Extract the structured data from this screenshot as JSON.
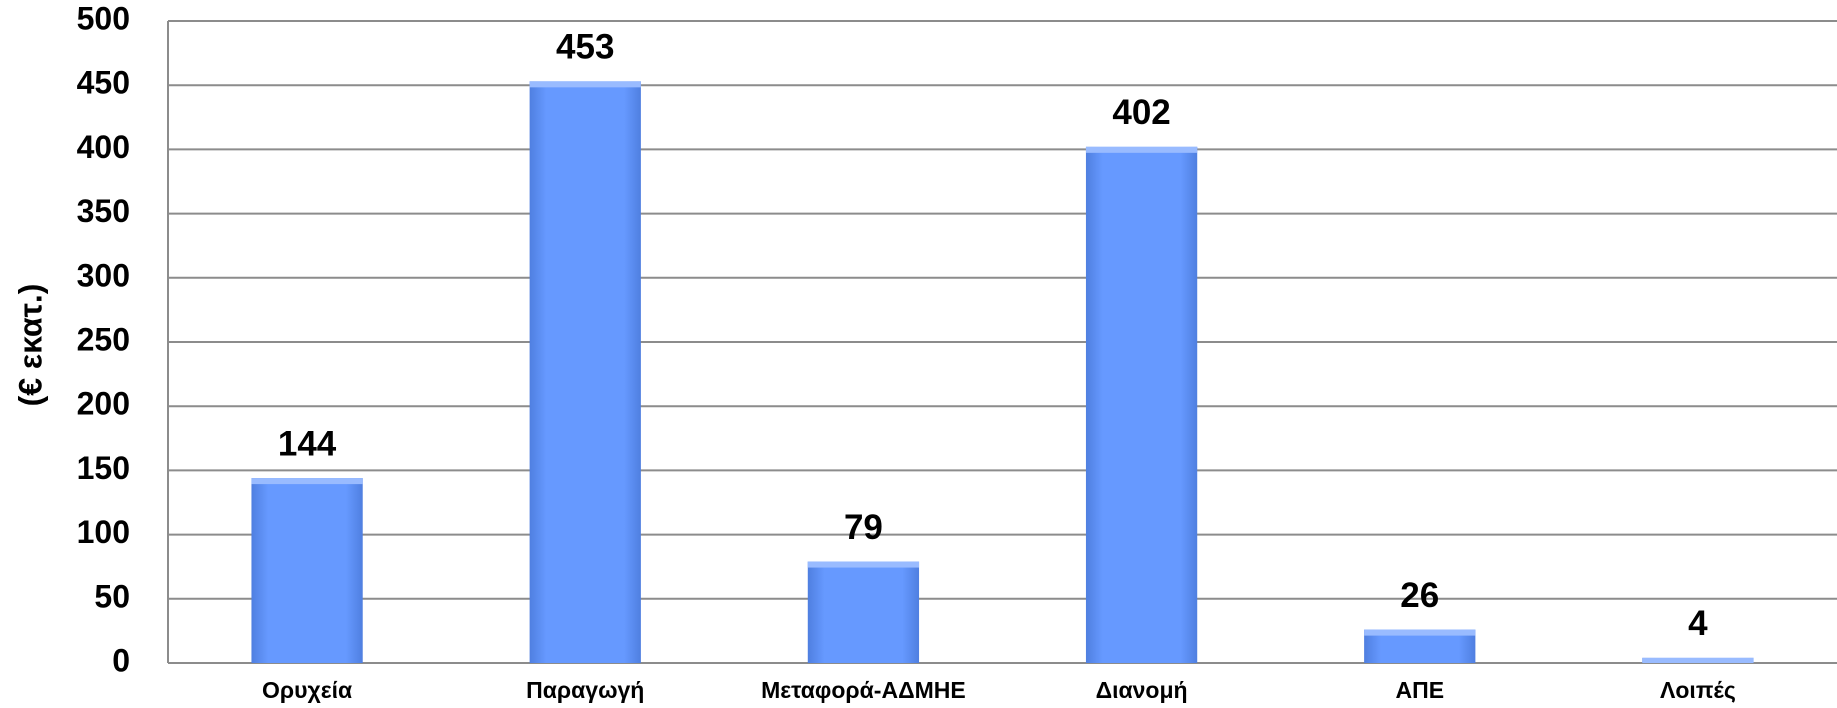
{
  "chart_data": {
    "type": "bar",
    "y_label": "(€ εκατ.)",
    "categories": [
      "Ορυχεία",
      "Παραγωγή",
      "Μεταφορά-ΑΔΜΗΕ",
      "Διανομή",
      "ΑΠΕ",
      "Λοιπές"
    ],
    "values": [
      144,
      453,
      79,
      402,
      26,
      4
    ],
    "color": "#6699ff",
    "ylim": [
      0,
      500
    ],
    "yticks": [
      0,
      50,
      100,
      150,
      200,
      250,
      300,
      350,
      400,
      450,
      500
    ],
    "grid": true
  }
}
